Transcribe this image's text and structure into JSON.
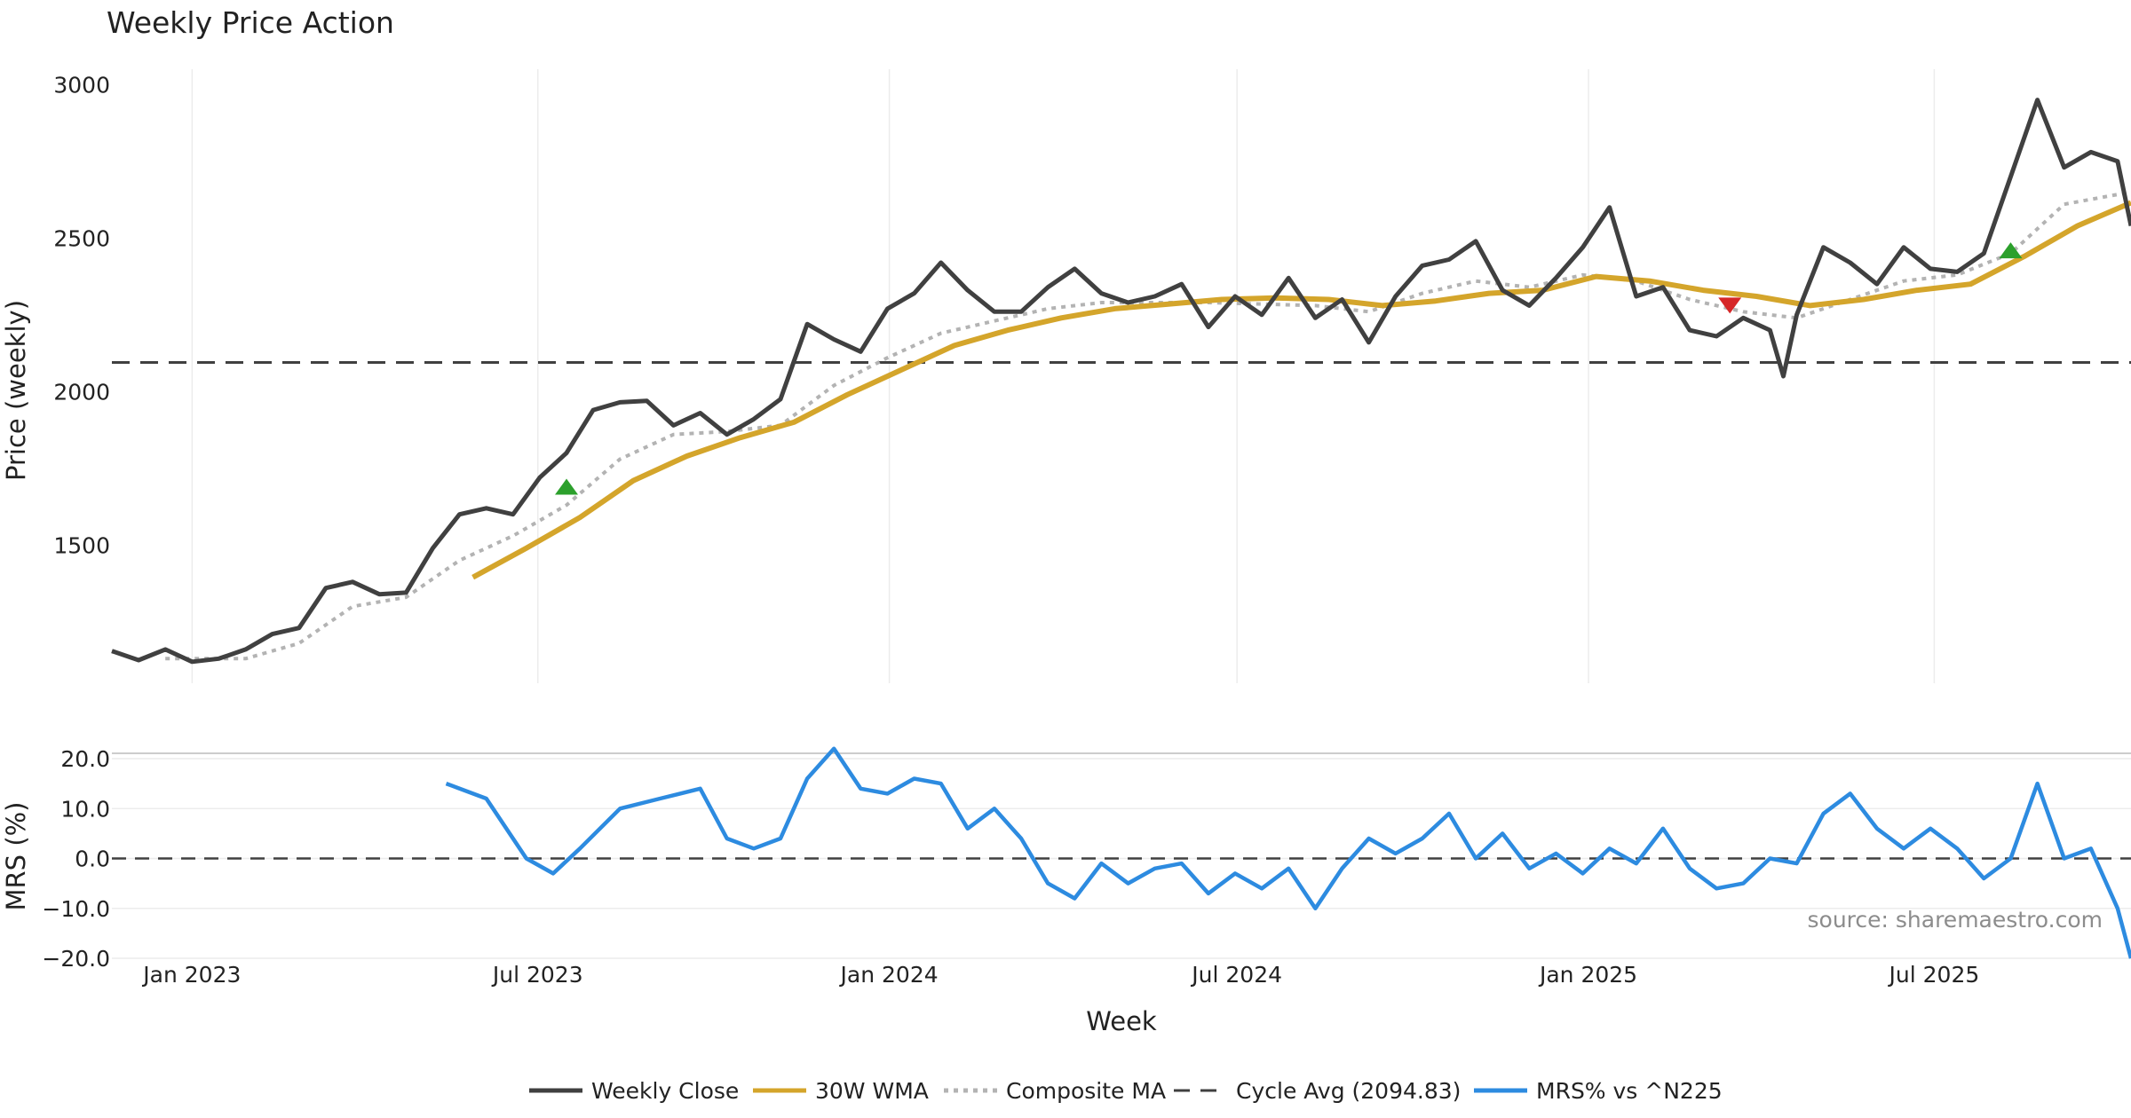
{
  "chart_data": [
    {
      "panel": "price",
      "type": "line",
      "title": "Weekly Price Action",
      "ylabel": "Price (weekly)",
      "xlabel": "Week",
      "ylim": [
        1050,
        3050
      ],
      "xlim": [
        "2022-11-20",
        "2025-10-12"
      ],
      "y_ticks": [
        1500,
        2000,
        2500,
        3000
      ],
      "x_ticks": [
        {
          "label": "Jan 2023",
          "date": "2023-01-01"
        },
        {
          "label": "Jul 2023",
          "date": "2023-07-01"
        },
        {
          "label": "Jan 2024",
          "date": "2024-01-01"
        },
        {
          "label": "Jul 2024",
          "date": "2024-07-01"
        },
        {
          "label": "Jan 2025",
          "date": "2025-01-01"
        },
        {
          "label": "Jul 2025",
          "date": "2025-07-01"
        }
      ],
      "grid": true,
      "cycle_avg": 2094.83,
      "series": [
        {
          "name": "Weekly Close",
          "color": "#404040",
          "style": "solid",
          "points": [
            [
              "2022-11-20",
              1155
            ],
            [
              "2022-12-04",
              1125
            ],
            [
              "2022-12-18",
              1160
            ],
            [
              "2023-01-01",
              1120
            ],
            [
              "2023-01-15",
              1130
            ],
            [
              "2023-01-29",
              1160
            ],
            [
              "2023-02-12",
              1210
            ],
            [
              "2023-02-26",
              1230
            ],
            [
              "2023-03-12",
              1360
            ],
            [
              "2023-03-26",
              1380
            ],
            [
              "2023-04-09",
              1340
            ],
            [
              "2023-04-23",
              1345
            ],
            [
              "2023-05-07",
              1490
            ],
            [
              "2023-05-21",
              1600
            ],
            [
              "2023-06-04",
              1620
            ],
            [
              "2023-06-18",
              1600
            ],
            [
              "2023-07-02",
              1720
            ],
            [
              "2023-07-16",
              1800
            ],
            [
              "2023-07-30",
              1940
            ],
            [
              "2023-08-13",
              1965
            ],
            [
              "2023-08-27",
              1970
            ],
            [
              "2023-09-10",
              1890
            ],
            [
              "2023-09-24",
              1930
            ],
            [
              "2023-10-08",
              1860
            ],
            [
              "2023-10-22",
              1910
            ],
            [
              "2023-11-05",
              1975
            ],
            [
              "2023-11-19",
              2220
            ],
            [
              "2023-12-03",
              2170
            ],
            [
              "2023-12-17",
              2130
            ],
            [
              "2023-12-31",
              2270
            ],
            [
              "2024-01-14",
              2320
            ],
            [
              "2024-01-28",
              2420
            ],
            [
              "2024-02-11",
              2330
            ],
            [
              "2024-02-25",
              2260
            ],
            [
              "2024-03-10",
              2260
            ],
            [
              "2024-03-24",
              2340
            ],
            [
              "2024-04-07",
              2400
            ],
            [
              "2024-04-21",
              2320
            ],
            [
              "2024-05-05",
              2290
            ],
            [
              "2024-05-19",
              2310
            ],
            [
              "2024-06-02",
              2350
            ],
            [
              "2024-06-16",
              2210
            ],
            [
              "2024-06-30",
              2310
            ],
            [
              "2024-07-14",
              2250
            ],
            [
              "2024-07-28",
              2370
            ],
            [
              "2024-08-11",
              2240
            ],
            [
              "2024-08-25",
              2300
            ],
            [
              "2024-09-08",
              2160
            ],
            [
              "2024-09-22",
              2310
            ],
            [
              "2024-10-06",
              2410
            ],
            [
              "2024-10-20",
              2430
            ],
            [
              "2024-11-03",
              2490
            ],
            [
              "2024-11-17",
              2330
            ],
            [
              "2024-12-01",
              2280
            ],
            [
              "2024-12-15",
              2370
            ],
            [
              "2024-12-29",
              2470
            ],
            [
              "2025-01-12",
              2600
            ],
            [
              "2025-01-26",
              2310
            ],
            [
              "2025-02-09",
              2340
            ],
            [
              "2025-02-23",
              2200
            ],
            [
              "2025-03-09",
              2180
            ],
            [
              "2025-03-23",
              2240
            ],
            [
              "2025-04-06",
              2200
            ],
            [
              "2025-04-13",
              2050
            ],
            [
              "2025-04-20",
              2250
            ],
            [
              "2025-05-04",
              2470
            ],
            [
              "2025-05-18",
              2420
            ],
            [
              "2025-06-01",
              2350
            ],
            [
              "2025-06-15",
              2470
            ],
            [
              "2025-06-29",
              2400
            ],
            [
              "2025-07-13",
              2390
            ],
            [
              "2025-07-27",
              2450
            ],
            [
              "2025-08-10",
              2700
            ],
            [
              "2025-08-24",
              2950
            ],
            [
              "2025-09-07",
              2730
            ],
            [
              "2025-09-21",
              2780
            ],
            [
              "2025-10-05",
              2750
            ],
            [
              "2025-10-12",
              2540
            ]
          ]
        },
        {
          "name": "30W WMA",
          "color": "#d4a52b",
          "style": "solid",
          "points": [
            [
              "2023-05-28",
              1395
            ],
            [
              "2023-06-25",
              1490
            ],
            [
              "2023-07-23",
              1590
            ],
            [
              "2023-08-20",
              1710
            ],
            [
              "2023-09-17",
              1790
            ],
            [
              "2023-10-15",
              1850
            ],
            [
              "2023-11-12",
              1900
            ],
            [
              "2023-12-10",
              1990
            ],
            [
              "2024-01-07",
              2070
            ],
            [
              "2024-02-04",
              2150
            ],
            [
              "2024-03-03",
              2200
            ],
            [
              "2024-03-31",
              2240
            ],
            [
              "2024-04-28",
              2270
            ],
            [
              "2024-05-26",
              2285
            ],
            [
              "2024-06-23",
              2300
            ],
            [
              "2024-07-21",
              2305
            ],
            [
              "2024-08-18",
              2300
            ],
            [
              "2024-09-15",
              2280
            ],
            [
              "2024-10-13",
              2295
            ],
            [
              "2024-11-10",
              2320
            ],
            [
              "2024-12-08",
              2330
            ],
            [
              "2025-01-05",
              2375
            ],
            [
              "2025-02-02",
              2360
            ],
            [
              "2025-03-02",
              2330
            ],
            [
              "2025-03-30",
              2310
            ],
            [
              "2025-04-27",
              2280
            ],
            [
              "2025-05-25",
              2300
            ],
            [
              "2025-06-22",
              2330
            ],
            [
              "2025-07-20",
              2350
            ],
            [
              "2025-08-17",
              2440
            ],
            [
              "2025-09-14",
              2540
            ],
            [
              "2025-10-12",
              2615
            ]
          ]
        },
        {
          "name": "Composite MA",
          "color": "#b3b3b3",
          "style": "dotted",
          "points": [
            [
              "2022-12-18",
              1130
            ],
            [
              "2023-01-29",
              1130
            ],
            [
              "2023-02-26",
              1180
            ],
            [
              "2023-03-26",
              1300
            ],
            [
              "2023-04-23",
              1330
            ],
            [
              "2023-05-21",
              1450
            ],
            [
              "2023-06-18",
              1530
            ],
            [
              "2023-07-16",
              1630
            ],
            [
              "2023-08-13",
              1780
            ],
            [
              "2023-09-10",
              1860
            ],
            [
              "2023-10-08",
              1870
            ],
            [
              "2023-11-05",
              1890
            ],
            [
              "2023-12-03",
              2020
            ],
            [
              "2023-12-31",
              2110
            ],
            [
              "2024-01-28",
              2190
            ],
            [
              "2024-02-25",
              2230
            ],
            [
              "2024-03-24",
              2270
            ],
            [
              "2024-04-21",
              2290
            ],
            [
              "2024-05-19",
              2290
            ],
            [
              "2024-06-16",
              2290
            ],
            [
              "2024-07-14",
              2285
            ],
            [
              "2024-08-11",
              2280
            ],
            [
              "2024-09-08",
              2260
            ],
            [
              "2024-10-06",
              2320
            ],
            [
              "2024-11-03",
              2360
            ],
            [
              "2024-12-01",
              2340
            ],
            [
              "2024-12-29",
              2380
            ],
            [
              "2025-01-26",
              2360
            ],
            [
              "2025-02-23",
              2300
            ],
            [
              "2025-03-23",
              2260
            ],
            [
              "2025-04-20",
              2240
            ],
            [
              "2025-05-18",
              2300
            ],
            [
              "2025-06-15",
              2360
            ],
            [
              "2025-07-13",
              2380
            ],
            [
              "2025-08-10",
              2450
            ],
            [
              "2025-09-07",
              2610
            ],
            [
              "2025-10-12",
              2650
            ]
          ]
        }
      ],
      "signals": [
        {
          "type": "buy",
          "date": "2023-07-16",
          "price": 1690,
          "color": "#2ca02c"
        },
        {
          "type": "sell",
          "date": "2025-03-16",
          "price": 2280,
          "color": "#d62728"
        },
        {
          "type": "buy",
          "date": "2025-08-10",
          "price": 2460,
          "color": "#2ca02c"
        }
      ]
    },
    {
      "panel": "mrs",
      "type": "line",
      "ylabel": "MRS (%)",
      "ylim": [
        -20,
        20
      ],
      "y_ticks": [
        -20,
        -10,
        0,
        10,
        20
      ],
      "y_tick_labels": [
        "−20.0",
        "−10.0",
        "0.0",
        "10.0",
        "20.0"
      ],
      "zero_line": true,
      "series": [
        {
          "name": "MRS% vs ^N225",
          "color": "#2d8be0",
          "points": [
            [
              "2023-05-14",
              15
            ],
            [
              "2023-06-04",
              12
            ],
            [
              "2023-06-25",
              0
            ],
            [
              "2023-07-09",
              -3
            ],
            [
              "2023-07-23",
              2
            ],
            [
              "2023-08-13",
              10
            ],
            [
              "2023-09-03",
              12
            ],
            [
              "2023-09-24",
              14
            ],
            [
              "2023-10-08",
              4
            ],
            [
              "2023-10-22",
              2
            ],
            [
              "2023-11-05",
              4
            ],
            [
              "2023-11-19",
              16
            ],
            [
              "2023-12-03",
              22
            ],
            [
              "2023-12-17",
              14
            ],
            [
              "2023-12-31",
              13
            ],
            [
              "2024-01-14",
              16
            ],
            [
              "2024-01-28",
              15
            ],
            [
              "2024-02-11",
              6
            ],
            [
              "2024-02-25",
              10
            ],
            [
              "2024-03-10",
              4
            ],
            [
              "2024-03-24",
              -5
            ],
            [
              "2024-04-07",
              -8
            ],
            [
              "2024-04-21",
              -1
            ],
            [
              "2024-05-05",
              -5
            ],
            [
              "2024-05-19",
              -2
            ],
            [
              "2024-06-02",
              -1
            ],
            [
              "2024-06-16",
              -7
            ],
            [
              "2024-06-30",
              -3
            ],
            [
              "2024-07-14",
              -6
            ],
            [
              "2024-07-28",
              -2
            ],
            [
              "2024-08-11",
              -10
            ],
            [
              "2024-08-25",
              -2
            ],
            [
              "2024-09-08",
              4
            ],
            [
              "2024-09-22",
              1
            ],
            [
              "2024-10-06",
              4
            ],
            [
              "2024-10-20",
              9
            ],
            [
              "2024-11-03",
              0
            ],
            [
              "2024-11-17",
              5
            ],
            [
              "2024-12-01",
              -2
            ],
            [
              "2024-12-15",
              1
            ],
            [
              "2024-12-29",
              -3
            ],
            [
              "2025-01-12",
              2
            ],
            [
              "2025-01-26",
              -1
            ],
            [
              "2025-02-09",
              6
            ],
            [
              "2025-02-23",
              -2
            ],
            [
              "2025-03-09",
              -6
            ],
            [
              "2025-03-23",
              -5
            ],
            [
              "2025-04-06",
              0
            ],
            [
              "2025-04-20",
              -1
            ],
            [
              "2025-05-04",
              9
            ],
            [
              "2025-05-18",
              13
            ],
            [
              "2025-06-01",
              6
            ],
            [
              "2025-06-15",
              2
            ],
            [
              "2025-06-29",
              6
            ],
            [
              "2025-07-13",
              2
            ],
            [
              "2025-07-27",
              -4
            ],
            [
              "2025-08-10",
              0
            ],
            [
              "2025-08-24",
              15
            ],
            [
              "2025-09-07",
              0
            ],
            [
              "2025-09-21",
              2
            ],
            [
              "2025-10-05",
              -10
            ],
            [
              "2025-10-12",
              -20
            ]
          ]
        }
      ]
    }
  ],
  "watermark": "source: sharemaestro.com",
  "legend": [
    {
      "label": "Weekly Close",
      "color": "#404040",
      "style": "solid"
    },
    {
      "label": "30W WMA",
      "color": "#d4a52b",
      "style": "solid"
    },
    {
      "label": "Composite MA",
      "color": "#b3b3b3",
      "style": "dotted"
    },
    {
      "label": "Cycle Avg (2094.83)",
      "color": "#404040",
      "style": "dashed"
    },
    {
      "label": "MRS% vs ^N225",
      "color": "#2d8be0",
      "style": "solid"
    }
  ]
}
